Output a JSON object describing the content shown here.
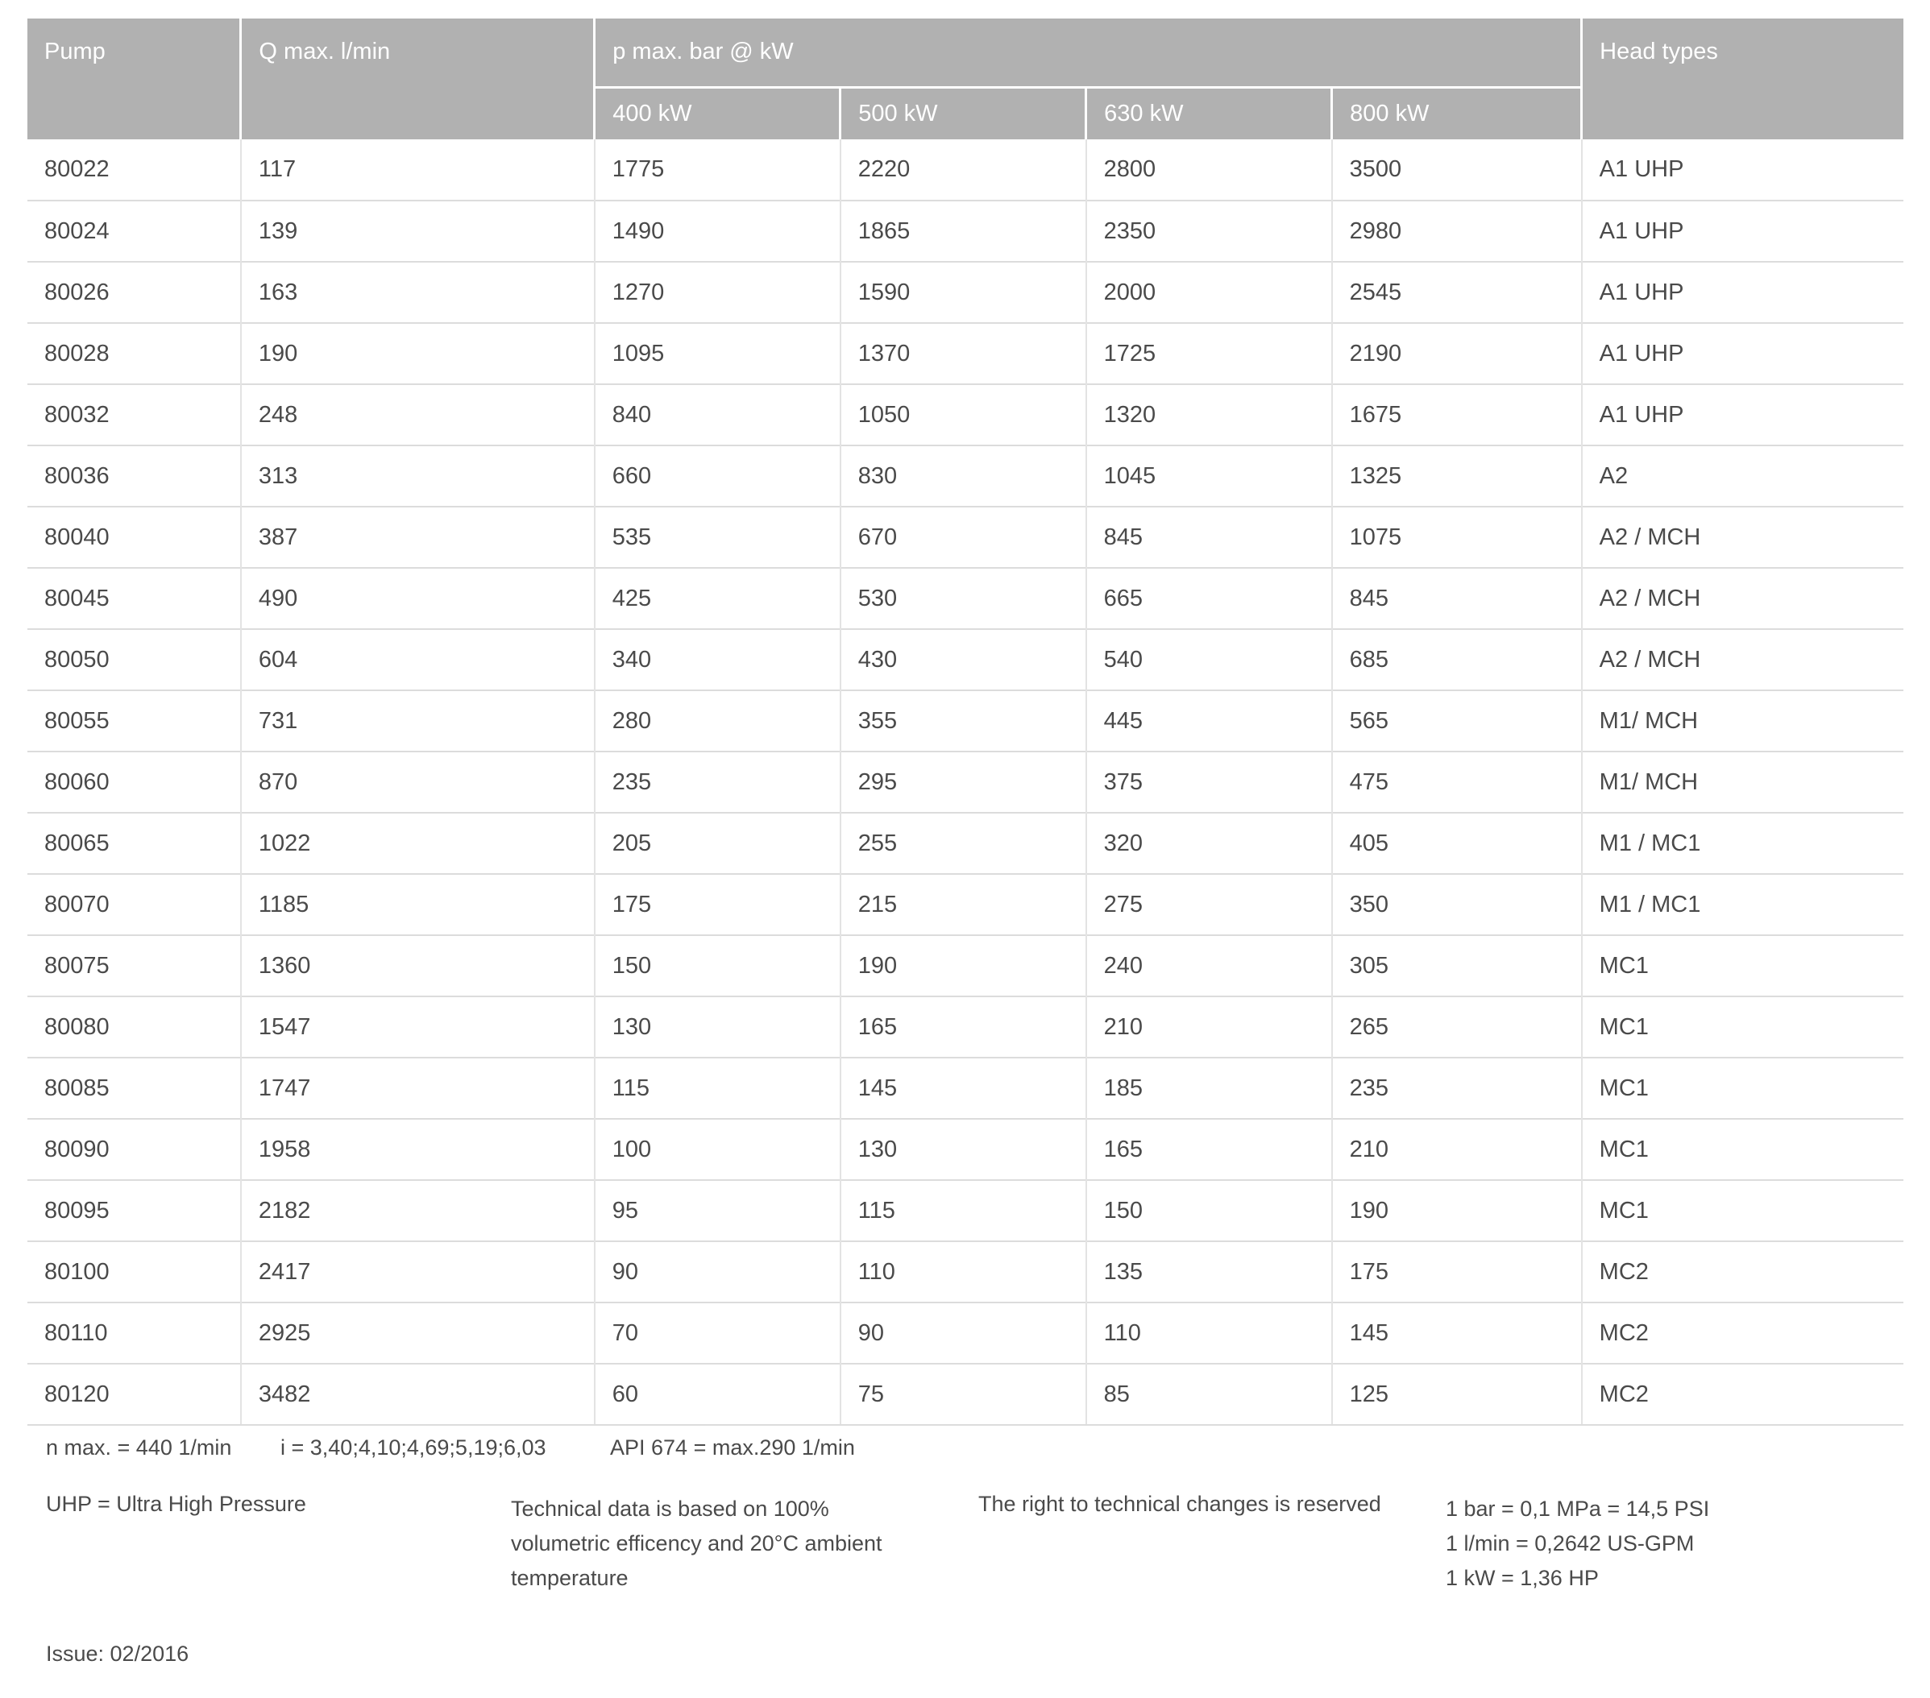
{
  "table": {
    "headers": {
      "pump": "Pump",
      "q_max": "Q max. l/min",
      "p_max": "p max. bar @ kW",
      "kw_columns": [
        "400 kW",
        "500 kW",
        "630 kW",
        "800 kW"
      ],
      "head_types": "Head types"
    },
    "rows": [
      {
        "pump": "80022",
        "q_max": "117",
        "kw_400": "1775",
        "kw_500": "2220",
        "kw_630": "2800",
        "kw_800": "3500",
        "head_type": "A1 UHP"
      },
      {
        "pump": "80024",
        "q_max": "139",
        "kw_400": "1490",
        "kw_500": "1865",
        "kw_630": "2350",
        "kw_800": "2980",
        "head_type": "A1 UHP"
      },
      {
        "pump": "80026",
        "q_max": "163",
        "kw_400": "1270",
        "kw_500": "1590",
        "kw_630": "2000",
        "kw_800": "2545",
        "head_type": "A1 UHP"
      },
      {
        "pump": "80028",
        "q_max": "190",
        "kw_400": "1095",
        "kw_500": "1370",
        "kw_630": "1725",
        "kw_800": "2190",
        "head_type": "A1 UHP"
      },
      {
        "pump": "80032",
        "q_max": "248",
        "kw_400": "840",
        "kw_500": "1050",
        "kw_630": "1320",
        "kw_800": "1675",
        "head_type": "A1 UHP"
      },
      {
        "pump": "80036",
        "q_max": "313",
        "kw_400": "660",
        "kw_500": "830",
        "kw_630": "1045",
        "kw_800": "1325",
        "head_type": "A2"
      },
      {
        "pump": "80040",
        "q_max": "387",
        "kw_400": "535",
        "kw_500": "670",
        "kw_630": "845",
        "kw_800": "1075",
        "head_type": "A2 / MCH"
      },
      {
        "pump": "80045",
        "q_max": "490",
        "kw_400": "425",
        "kw_500": "530",
        "kw_630": "665",
        "kw_800": "845",
        "head_type": "A2 / MCH"
      },
      {
        "pump": "80050",
        "q_max": "604",
        "kw_400": "340",
        "kw_500": "430",
        "kw_630": "540",
        "kw_800": "685",
        "head_type": "A2 / MCH"
      },
      {
        "pump": "80055",
        "q_max": "731",
        "kw_400": "280",
        "kw_500": "355",
        "kw_630": "445",
        "kw_800": "565",
        "head_type": "M1/ MCH"
      },
      {
        "pump": "80060",
        "q_max": "870",
        "kw_400": "235",
        "kw_500": "295",
        "kw_630": "375",
        "kw_800": "475",
        "head_type": "M1/ MCH"
      },
      {
        "pump": "80065",
        "q_max": "1022",
        "kw_400": "205",
        "kw_500": "255",
        "kw_630": "320",
        "kw_800": "405",
        "head_type": "M1 / MC1"
      },
      {
        "pump": "80070",
        "q_max": "1185",
        "kw_400": "175",
        "kw_500": "215",
        "kw_630": "275",
        "kw_800": "350",
        "head_type": "M1 / MC1"
      },
      {
        "pump": "80075",
        "q_max": "1360",
        "kw_400": "150",
        "kw_500": "190",
        "kw_630": "240",
        "kw_800": "305",
        "head_type": "MC1"
      },
      {
        "pump": "80080",
        "q_max": "1547",
        "kw_400": "130",
        "kw_500": "165",
        "kw_630": "210",
        "kw_800": "265",
        "head_type": "MC1"
      },
      {
        "pump": "80085",
        "q_max": "1747",
        "kw_400": "115",
        "kw_500": "145",
        "kw_630": "185",
        "kw_800": "235",
        "head_type": "MC1"
      },
      {
        "pump": "80090",
        "q_max": "1958",
        "kw_400": "100",
        "kw_500": "130",
        "kw_630": "165",
        "kw_800": "210",
        "head_type": "MC1"
      },
      {
        "pump": "80095",
        "q_max": "2182",
        "kw_400": "95",
        "kw_500": "115",
        "kw_630": "150",
        "kw_800": "190",
        "head_type": "MC1"
      },
      {
        "pump": "80100",
        "q_max": "2417",
        "kw_400": "90",
        "kw_500": "110",
        "kw_630": "135",
        "kw_800": "175",
        "head_type": "MC2"
      },
      {
        "pump": "80110",
        "q_max": "2925",
        "kw_400": "70",
        "kw_500": "90",
        "kw_630": "110",
        "kw_800": "145",
        "head_type": "MC2"
      },
      {
        "pump": "80120",
        "q_max": "3482",
        "kw_400": "60",
        "kw_500": "75",
        "kw_630": "85",
        "kw_800": "125",
        "head_type": "MC2"
      }
    ]
  },
  "footnotes": {
    "n_max": "n max. = 440 1/min",
    "i_ratios": "i = 3,40;4,10;4,69;5,19;6,03",
    "api": "API 674 = max.290 1/min",
    "uhp": "UHP = Ultra High Pressure",
    "technical_lines": [
      "Technical data is based on 100%",
      "volumetric efficency and 20°C ambient",
      "temperature"
    ],
    "rights": "The right to technical changes is reserved",
    "conversions": [
      "1 bar = 0,1 MPa = 14,5 PSI",
      "1 l/min = 0,2642 US-GPM",
      "1 kW = 1,36 HP"
    ],
    "issue": "Issue: 02/2016"
  },
  "colors": {
    "header_bg": "#b1b1b1",
    "header_text": "#ffffff",
    "body_text": "#4a4a4a",
    "row_border": "#dcdcdc"
  }
}
